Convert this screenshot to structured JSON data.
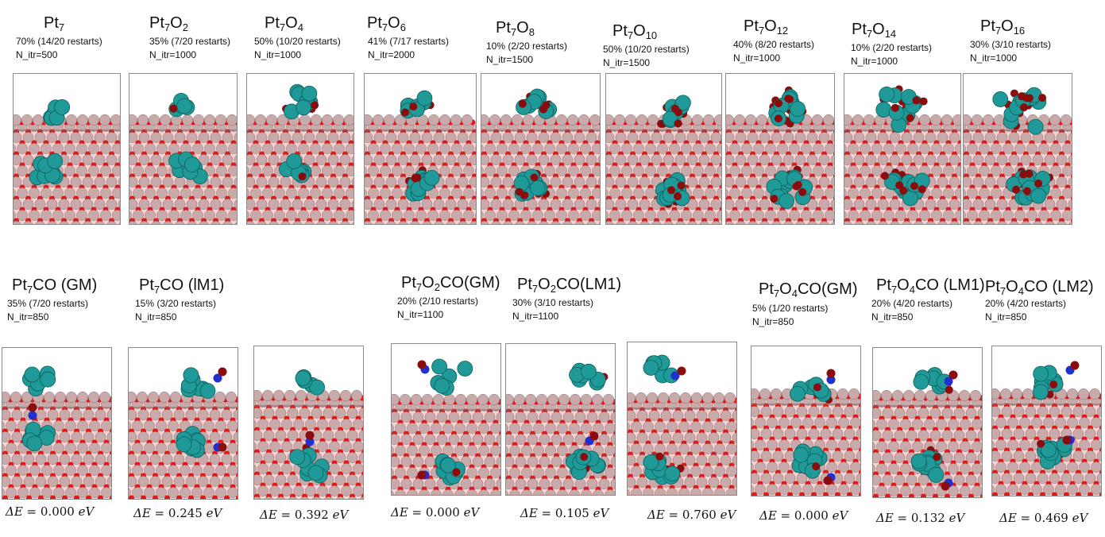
{
  "colors": {
    "pt": "#1f9a98",
    "pt_edge": "#0d5e5c",
    "o_small": "#e01818",
    "o_dark": "#8a0c0c",
    "support": "#c9aaaa",
    "support_edge": "#8f7070",
    "c": "#2030d0",
    "bond": "#f0a5a5"
  },
  "top_row": [
    {
      "base": "Pt",
      "sub1": "7",
      "o": "",
      "sub2": "",
      "stat": "70% (14/20 restarts)",
      "itr": "N_itr=500",
      "cluster": "Pt cluster on surface, Pt embedded"
    },
    {
      "base": "Pt",
      "sub1": "7",
      "o": "O",
      "sub2": "2",
      "stat": "35% (7/20 restarts)",
      "itr": "N_itr=1000"
    },
    {
      "base": "Pt",
      "sub1": "7",
      "o": "O",
      "sub2": "4",
      "stat": "50% (10/20 restarts)",
      "itr": "N_itr=1000"
    },
    {
      "base": "Pt",
      "sub1": "7",
      "o": "O",
      "sub2": "6",
      "stat": "41% (7/17 restarts)",
      "itr": "N_itr=2000"
    },
    {
      "base": "Pt",
      "sub1": "7",
      "o": "O",
      "sub2": "8",
      "stat": "10% (2/20 restarts)",
      "itr": "N_itr=1500"
    },
    {
      "base": "Pt",
      "sub1": "7",
      "o": "O",
      "sub2": "10",
      "stat": "50% (10/20 restarts)",
      "itr": "N_itr=1500"
    },
    {
      "base": "Pt",
      "sub1": "7",
      "o": "O",
      "sub2": "12",
      "stat": "40% (8/20 restarts)",
      "itr": "N_itr=1000"
    },
    {
      "base": "Pt",
      "sub1": "7",
      "o": "O",
      "sub2": "14",
      "stat": "10% (2/20 restarts)",
      "itr": "N_itr=1000"
    },
    {
      "base": "Pt",
      "sub1": "7",
      "o": "O",
      "sub2": "16",
      "stat": "30% (3/10 restarts)",
      "itr": "N_itr=1000"
    }
  ],
  "bottom_row": [
    {
      "base": "Pt",
      "sub1": "7",
      "o": "",
      "sub2": "",
      "suffix": "CO (GM)",
      "stat": "35% (7/20 restarts)",
      "itr": "N_itr=850",
      "energy": "0.000"
    },
    {
      "base": "Pt",
      "sub1": "7",
      "o": "",
      "sub2": "",
      "suffix": "CO (lM1)",
      "stat": "15% (3/20 restarts)",
      "itr": "N_itr=850",
      "energy": "0.245"
    },
    {
      "energy": "0.392"
    },
    {
      "base": "Pt",
      "sub1": "7",
      "o": "O",
      "sub2": "2",
      "suffix": "CO(GM)",
      "stat": "20% (2/10 restarts)",
      "itr": "N_itr=1100",
      "energy": "0.000"
    },
    {
      "base": "Pt",
      "sub1": "7",
      "o": "O",
      "sub2": "2",
      "suffix": "CO(LM1)",
      "stat": "30% (3/10 restarts)",
      "itr": "N_itr=1100",
      "energy": "0.105"
    },
    {
      "energy": "0.760"
    },
    {
      "base": "Pt",
      "sub1": "7",
      "o": "O",
      "sub2": "4",
      "suffix": "CO(GM)",
      "stat": "5% (1/20 restarts)",
      "itr": "N_itr=850",
      "energy": "0.000"
    },
    {
      "base": "Pt",
      "sub1": "7",
      "o": "O",
      "sub2": "4",
      "suffix": "CO (LM1)",
      "stat": "20% (4/20 restarts)",
      "itr": "N_itr=850",
      "energy": "0.132"
    },
    {
      "base": "Pt",
      "sub1": "7",
      "o": "O",
      "sub2": "4",
      "suffix": "CO (LM2)",
      "stat": "20% (4/20 restarts)",
      "itr": "N_itr=850",
      "energy": "0.469"
    }
  ],
  "energy_prefix": "ΔE = ",
  "energy_unit": " eV"
}
